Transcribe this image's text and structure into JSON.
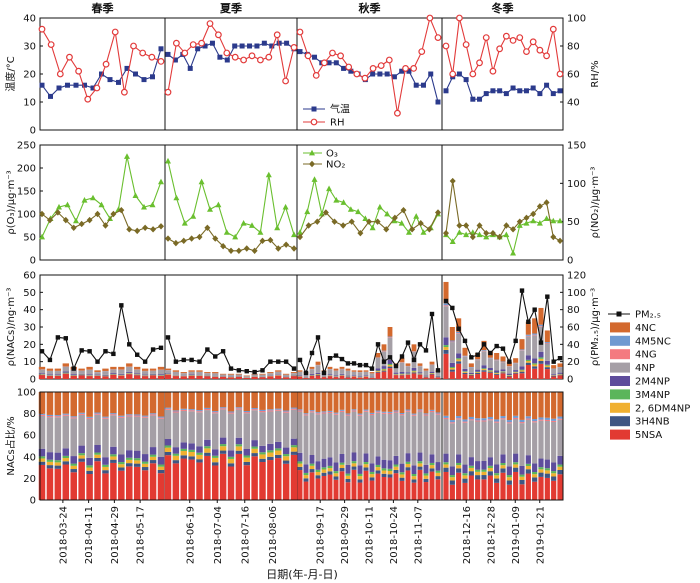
{
  "chart_data": [
    {
      "type": "line",
      "panel": "temperature_rh",
      "seasons": [
        "春季",
        "夏季",
        "秋季",
        "冬季"
      ],
      "ylabel": "温度/°C",
      "y2label": "RH/%",
      "ylim": [
        0,
        40
      ],
      "yticks": [
        0,
        10,
        20,
        30,
        40
      ],
      "y2lim": [
        20,
        100
      ],
      "y2ticks": [
        40,
        60,
        80,
        100
      ],
      "legend_position": "bottom-center",
      "series": [
        {
          "name": "气温",
          "axis": "left",
          "color": "#2b3a8c",
          "marker": "square",
          "segments": [
            [
              16,
              12,
              15,
              16,
              16,
              16,
              15,
              20,
              18,
              17,
              22,
              20,
              18,
              19,
              29
            ],
            [
              27,
              25,
              27,
              22,
              29,
              30,
              31,
              26,
              25,
              30,
              30,
              30,
              30,
              31,
              30,
              31,
              31,
              29
            ],
            [
              28,
              27,
              26,
              24,
              24,
              24,
              22,
              21,
              20,
              18,
              20,
              20,
              20,
              19,
              21,
              21,
              16,
              16,
              20,
              10
            ],
            [
              14,
              19,
              20,
              18,
              11,
              11,
              13,
              14,
              14,
              13,
              15,
              14,
              14,
              15,
              13,
              16,
              13,
              14
            ]
          ]
        },
        {
          "name": "RH",
          "axis": "right",
          "color": "#e23b3b",
          "marker": "circle",
          "segments": [
            [
              92,
              81,
              60,
              72,
              62,
              42,
              50,
              67,
              90,
              47,
              80,
              75,
              72,
              69
            ],
            [
              47,
              82,
              75,
              81,
              82,
              96,
              88,
              75,
              72,
              70,
              73,
              70,
              72,
              88,
              55,
              79
            ],
            [
              90,
              73,
              59,
              68,
              75,
              73,
              65,
              60,
              57,
              64,
              66,
              70,
              32,
              64,
              64,
              76,
              100,
              86
            ],
            [
              80,
              60,
              100,
              81,
              60,
              68,
              86,
              62,
              78,
              87,
              84,
              86,
              76,
              83,
              77,
              73,
              92,
              60
            ]
          ]
        }
      ]
    },
    {
      "type": "line",
      "panel": "o3_no2",
      "ylabel": "ρ(O₃)/μg·m⁻³",
      "y2label": "ρ(NO₂)/μg·m⁻³",
      "ylim": [
        0,
        250
      ],
      "yticks": [
        0,
        50,
        100,
        150,
        200,
        250
      ],
      "y2lim": [
        0,
        150
      ],
      "y2ticks": [
        0,
        50,
        100,
        150
      ],
      "legend_position": "top-center",
      "series": [
        {
          "name": "O₃",
          "axis": "left",
          "color": "#6abf2f",
          "marker": "triangle",
          "segments": [
            [
              50,
              90,
              115,
              120,
              85,
              130,
              135,
              120,
              90,
              110,
              225,
              140,
              115,
              120,
              170
            ],
            [
              215,
              135,
              80,
              95,
              170,
              110,
              120,
              60,
              50,
              80,
              75,
              60,
              185,
              70,
              115,
              55
            ],
            [
              60,
              105,
              175,
              100,
              155,
              130,
              125,
              110,
              105,
              90,
              70,
              115,
              100,
              85,
              80,
              60,
              95,
              60,
              70,
              100
            ],
            [
              55,
              40,
              60,
              55,
              60,
              55,
              50,
              55,
              50,
              55,
              15,
              75,
              80,
              85,
              80,
              90,
              85,
              85
            ]
          ]
        },
        {
          "name": "NO₂",
          "axis": "right",
          "color": "#7a6a26",
          "marker": "diamond",
          "segments": [
            [
              60,
              52,
              62,
              52,
              42,
              47,
              52,
              60,
              45,
              60,
              65,
              40,
              38,
              42,
              40,
              44
            ],
            [
              28,
              22,
              25,
              28,
              30,
              42,
              28,
              18,
              12,
              12,
              15,
              12,
              25,
              26,
              15,
              20,
              15
            ],
            [
              30,
              45,
              50,
              62,
              50,
              45,
              50,
              35,
              50,
              50,
              40,
              55,
              65,
              40,
              48,
              40,
              62
            ],
            [
              35,
              103,
              45,
              45,
              30,
              45,
              35,
              35,
              30,
              45,
              40,
              50,
              55,
              60,
              70,
              75,
              30,
              25
            ]
          ]
        }
      ]
    },
    {
      "type": "bar",
      "stacked": true,
      "panel": "nacs_concentration",
      "ylabel": "ρ(NACs)/ng·m⁻³",
      "y2label": "ρ(PM₂.₅)/μg·m⁻³",
      "ylim": [
        0,
        60
      ],
      "yticks": [
        0,
        10,
        20,
        30,
        40,
        50,
        60
      ],
      "y2lim": [
        0,
        120
      ],
      "y2ticks": [
        0,
        20,
        40,
        60,
        80,
        100,
        120
      ],
      "pm25_segments": [
        [
          32,
          22,
          48,
          47,
          12,
          33,
          32,
          20,
          32,
          29,
          85,
          40,
          28,
          20,
          34,
          36
        ],
        [
          48,
          20,
          22,
          22,
          20,
          34,
          26,
          32,
          12,
          10,
          9,
          8,
          10,
          20,
          20,
          20,
          12
        ],
        [
          22,
          7,
          30,
          48,
          7,
          24,
          27,
          23,
          18,
          18,
          16,
          16,
          12,
          40,
          20,
          25,
          15,
          26,
          42,
          22,
          40,
          33,
          75,
          10
        ],
        [
          90,
          82,
          58,
          44,
          25,
          28,
          40,
          30,
          38,
          35,
          20,
          44,
          102,
          66,
          80,
          42,
          95,
          20,
          24
        ]
      ],
      "nacs_totals": [
        [
          7,
          6,
          6,
          9,
          7,
          6,
          7,
          5,
          6,
          7,
          7,
          9,
          7,
          6,
          6,
          7
        ],
        [
          6,
          5,
          4,
          5,
          5,
          4,
          4,
          3,
          3,
          3,
          2,
          3,
          3,
          4,
          5,
          3,
          4
        ],
        [
          5,
          4,
          7,
          10,
          5,
          7,
          6,
          7,
          6,
          5,
          5,
          5,
          4,
          15,
          20,
          30,
          9,
          12,
          9,
          20,
          9,
          6,
          10,
          5
        ],
        [
          56,
          30,
          35,
          18,
          9,
          15,
          22,
          16,
          15,
          13,
          10,
          12,
          23,
          33,
          35,
          41,
          28,
          8,
          9
        ]
      ]
    },
    {
      "type": "bar",
      "stacked": true,
      "percent": true,
      "panel": "nacs_fraction",
      "ylabel": "NACs占比/%",
      "ylim": [
        0,
        100
      ],
      "yticks": [
        0,
        20,
        40,
        60,
        80,
        100
      ],
      "xlabel": "日期(年-月-日)",
      "x_tick_labels": [
        "2018-03-24",
        "2018-04-11",
        "2018-04-29",
        "2018-05-17",
        "2018-06-19",
        "2018-07-04",
        "2018-07-16",
        "2018-08-06",
        "2018-09-17",
        "2018-09-29",
        "2018-10-11",
        "2018-10-24",
        "2018-11-07",
        "2018-12-16",
        "2018-12-28",
        "2019-01-09",
        "2019-01-21"
      ],
      "components": [
        "5NSA",
        "3H4NB",
        "2, 6DM4NP",
        "3M4NP",
        "2M4NP",
        "4NP",
        "4NG",
        "4M5NC",
        "4NC"
      ],
      "component_colors": {
        "5NSA": "#e23a32",
        "3H4NB": "#3f5683",
        "2, 6DM4NP": "#f0b030",
        "3M4NP": "#5bb55b",
        "2M4NP": "#5e4d9c",
        "4NP": "#a59fa6",
        "4NG": "#f47a80",
        "4M5NC": "#6f9ad1",
        "4NC": "#d3692e"
      },
      "season_mean_fractions": {
        "春季": [
          0.3,
          0.03,
          0.03,
          0.02,
          0.07,
          0.32,
          0.01,
          0.01,
          0.21
        ],
        "夏季": [
          0.37,
          0.03,
          0.04,
          0.02,
          0.06,
          0.3,
          0.01,
          0.01,
          0.16
        ],
        "秋季": [
          0.22,
          0.03,
          0.03,
          0.02,
          0.08,
          0.42,
          0.01,
          0.01,
          0.18
        ],
        "冬季": [
          0.2,
          0.04,
          0.03,
          0.02,
          0.08,
          0.36,
          0.01,
          0.02,
          0.24
        ]
      }
    }
  ],
  "legend": {
    "items": [
      {
        "label": "PM₂.₅",
        "kind": "line-square",
        "color": "#111111"
      },
      {
        "label": "4NC",
        "kind": "box",
        "color": "#d3692e"
      },
      {
        "label": "4M5NC",
        "kind": "box",
        "color": "#6f9ad1"
      },
      {
        "label": "4NG",
        "kind": "box",
        "color": "#f47a80"
      },
      {
        "label": "4NP",
        "kind": "box",
        "color": "#a59fa6"
      },
      {
        "label": "2M4NP",
        "kind": "box",
        "color": "#5e4d9c"
      },
      {
        "label": "3M4NP",
        "kind": "box",
        "color": "#5bb55b"
      },
      {
        "label": "2, 6DM4NP",
        "kind": "box",
        "color": "#f0b030"
      },
      {
        "label": "3H4NB",
        "kind": "box",
        "color": "#3f5683"
      },
      {
        "label": "5NSA",
        "kind": "box",
        "color": "#e23a32"
      }
    ]
  }
}
